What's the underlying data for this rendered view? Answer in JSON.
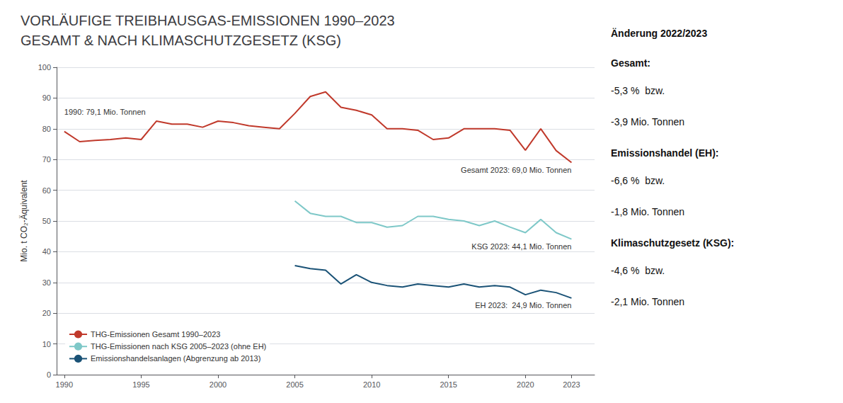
{
  "chart_data": {
    "type": "line",
    "title": "VORLÄUFIGE TREIBHAUSGAS-EMISSIONEN 1990–2023\nGESAMT & NACH KLIMASCHUTZGESETZ (KSG)",
    "ylabel": "Mio. t CO₂-Äquivalent",
    "series": [
      {
        "name": "THG-Emissionen Gesamt 1990–2023",
        "color": "#c0392b",
        "x": [
          1990,
          1991,
          1992,
          1993,
          1994,
          1995,
          1996,
          1997,
          1998,
          1999,
          2000,
          2001,
          2002,
          2003,
          2004,
          2005,
          2006,
          2007,
          2008,
          2009,
          2010,
          2011,
          2012,
          2013,
          2014,
          2015,
          2016,
          2017,
          2018,
          2019,
          2020,
          2021,
          2022,
          2023
        ],
        "values": [
          79.1,
          75.8,
          76.2,
          76.5,
          77.0,
          76.5,
          82.5,
          81.5,
          81.5,
          80.5,
          82.5,
          82.0,
          81.0,
          80.5,
          80.0,
          85.0,
          90.5,
          92.0,
          87.0,
          86.0,
          84.5,
          80.0,
          80.0,
          79.5,
          76.5,
          77.0,
          80.0,
          80.0,
          80.0,
          79.5,
          73.0,
          80.0,
          72.9,
          69.0
        ]
      },
      {
        "name": "THG-Emissionen nach KSG 2005–2023 (ohne EH)",
        "color": "#7ec8c8",
        "x": [
          2005,
          2006,
          2007,
          2008,
          2009,
          2010,
          2011,
          2012,
          2013,
          2014,
          2015,
          2016,
          2017,
          2018,
          2019,
          2020,
          2021,
          2022,
          2023
        ],
        "values": [
          56.5,
          52.5,
          51.5,
          51.5,
          49.5,
          49.5,
          48.0,
          48.5,
          51.5,
          51.5,
          50.5,
          50.0,
          48.5,
          50.0,
          48.0,
          46.2,
          50.5,
          46.2,
          44.1
        ]
      },
      {
        "name": "Emissionshandelsanlagen (Abgrenzung ab 2013)",
        "color": "#1a5276",
        "x": [
          2005,
          2006,
          2007,
          2008,
          2009,
          2010,
          2011,
          2012,
          2013,
          2014,
          2015,
          2016,
          2017,
          2018,
          2019,
          2020,
          2021,
          2022,
          2023
        ],
        "values": [
          35.5,
          34.5,
          34.0,
          29.5,
          32.5,
          30.0,
          29.0,
          28.5,
          29.5,
          29.0,
          28.5,
          29.5,
          28.5,
          29.0,
          28.5,
          26.0,
          27.5,
          26.7,
          24.9
        ]
      }
    ],
    "xlim": [
      1989.5,
      2024.5
    ],
    "xticks": [
      1990,
      1995,
      2000,
      2005,
      2010,
      2015,
      2020,
      2023
    ],
    "ylim": [
      0,
      100
    ],
    "yticks": [
      0,
      10,
      20,
      30,
      40,
      50,
      60,
      70,
      80,
      90,
      100
    ],
    "grid": true,
    "legend": "lower left",
    "annotations": [
      "1990: 79,1 Mio. Tonnen",
      "Gesamt 2023: 69,0 Mio. Tonnen",
      "KSG 2023: 44,1 Mio. Tonnen",
      "EH 2023:  24,9 Mio. Tonnen"
    ],
    "sidebar": {
      "title": "Änderung 2022/2023",
      "sections": [
        {
          "heading": "Gesamt:",
          "lines": [
            "-5,3 %  bzw.",
            "-3,9 Mio. Tonnen"
          ]
        },
        {
          "heading": "Emissionshandel (EH):",
          "lines": [
            "-6,6 %  bzw.",
            "-1,8 Mio. Tonnen"
          ]
        },
        {
          "heading": "Klimaschutzgesetz (KSG):",
          "lines": [
            "-4,6 %  bzw.",
            "-2,1 Mio. Tonnen"
          ]
        }
      ]
    }
  }
}
